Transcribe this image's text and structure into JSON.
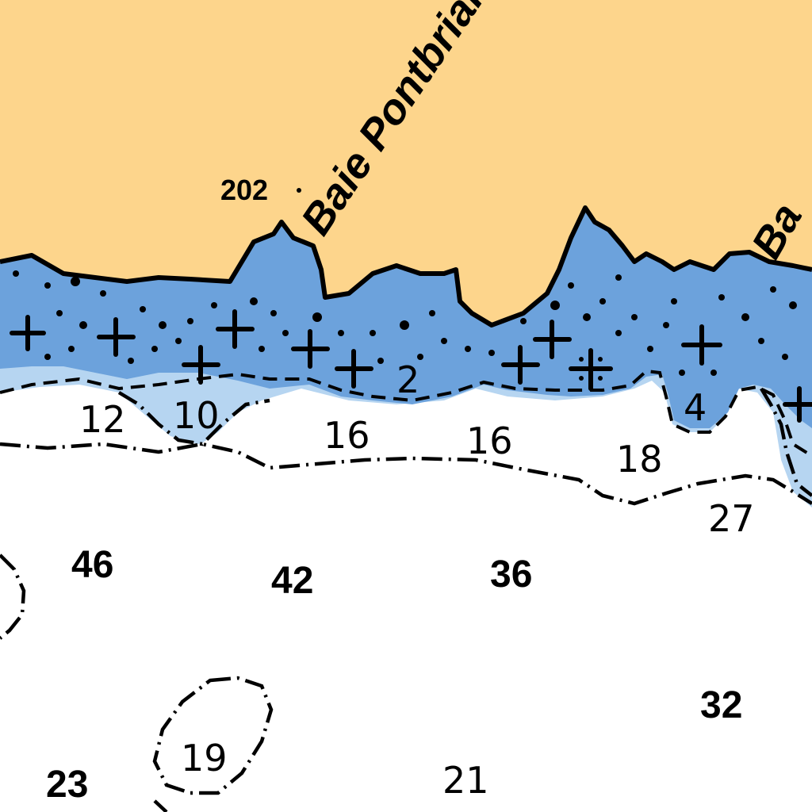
{
  "map": {
    "colors": {
      "land": "#FDD58C",
      "drying_shoal": "#6CA2DC",
      "shallow_water": "#B6D5F1",
      "deep_water": "#FFFFFF",
      "ink": "#000000"
    },
    "place_names": {
      "baie_pontbriand": "Baie Pontbriand",
      "baie_right": "Ba"
    },
    "spot_elevation": "202",
    "soundings": {
      "s12": "12",
      "s10": "10",
      "s16a": "16",
      "s16b": "16",
      "s18": "18",
      "s2": "2",
      "s4": "4",
      "s27": "27",
      "s46": "46",
      "s42": "42",
      "s36": "36",
      "s32": "32",
      "s19": "19",
      "s23": "23",
      "s21": "21"
    },
    "symbols": {
      "rock": "rock-cross-icon",
      "rock_awash": "rock-awash-icon",
      "depth_contour": "dash-dot-contour"
    }
  }
}
